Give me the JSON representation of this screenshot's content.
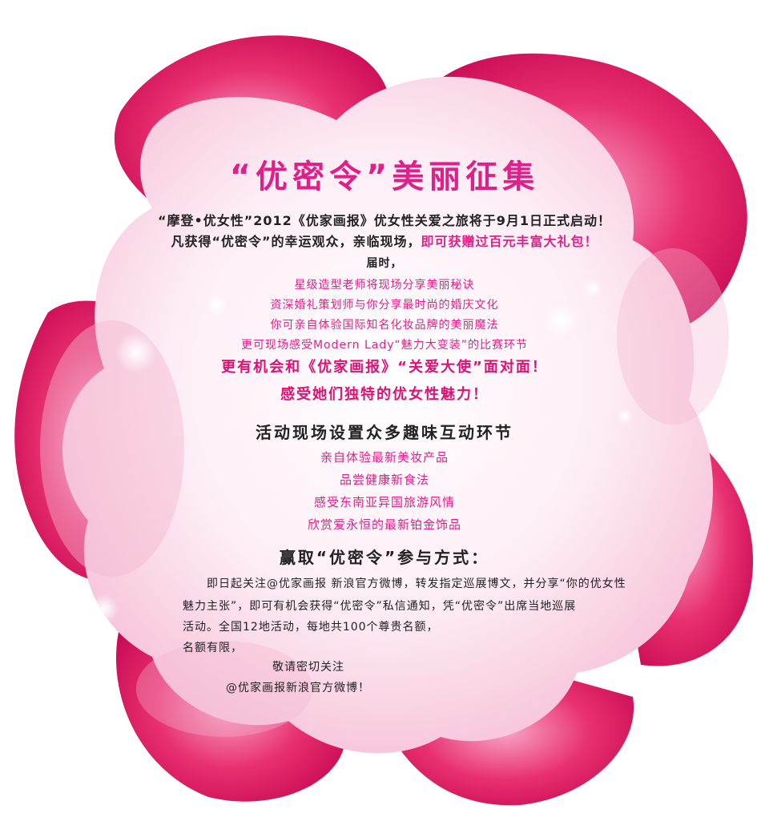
{
  "title": "“优密令”美丽征集",
  "intro": {
    "line1": "“摩登•优女性”2012《优家画报》优女性关爱之旅将于9月1日正式启动！",
    "line2_a": "凡获得“优密令”的幸运观众，亲临现场，",
    "line2_b": "即可获赠过百元丰富大礼包！",
    "line3": "届时，"
  },
  "perks": [
    "星级造型老师将现场分享美丽秘诀",
    "资深婚礼策划师与你分享最时尚的婚庆文化",
    "你可亲自体验国际知名化妆品牌的美丽魔法",
    "更可现场感受Modern Lady“魅力大变装”的比赛环节"
  ],
  "highlight": [
    "更有机会和《优家画报》“关爱大使”面对面！",
    "感受她们独特的优女性魅力！"
  ],
  "activities": {
    "heading": "活动现场设置众多趣味互动环节",
    "items": [
      "亲自体验最新美妆产品",
      "品尝健康新食法",
      "感受东南亚异国旅游风情",
      "欣赏爱永恒的最新铂金饰品"
    ]
  },
  "participate": {
    "heading": "赢取“优密令”参与方式：",
    "p1": "即日起关注@优家画报 新浪官方微博，转发指定巡展博文，并分享“你的优女性",
    "p2": "魅力主张”，即可有机会获得“优密令”私信通知，凭“优密令”出席当地巡展",
    "p3": "活动。全国12地活动，每地共100个尊贵名额，",
    "p4": "名额有限，",
    "p5": "敬请密切关注",
    "p6": "@优家画报新浪官方微博！"
  },
  "colors": {
    "accent": "#e0208a",
    "petal_deep": "#d6105f",
    "petal_light": "#fce4f0",
    "text": "#222222"
  }
}
